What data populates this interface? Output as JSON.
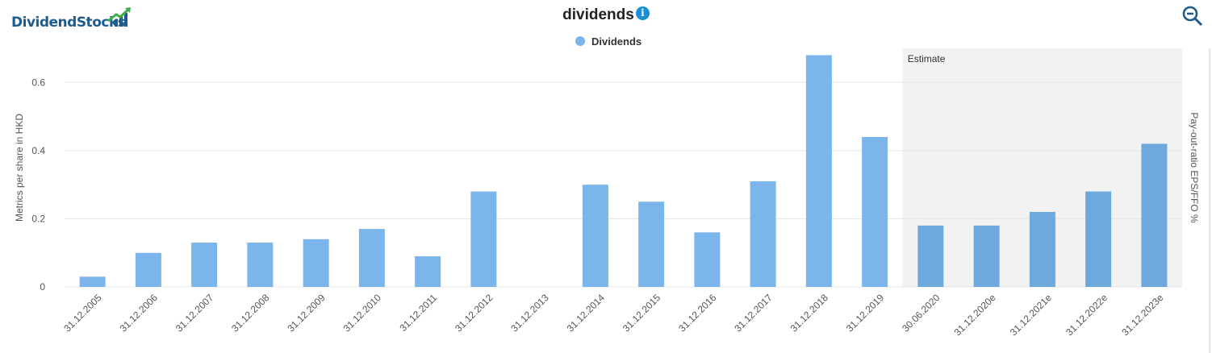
{
  "header": {
    "logo_text": "DividendStocks",
    "title": "dividends",
    "info_icon": "info-icon",
    "zoom_icon": "zoom-out-icon"
  },
  "colors": {
    "bar": "#7cb5ec",
    "bar_estimate": "#6fa8dc",
    "estimate_band": "#f2f2f2",
    "grid": "#e6e6e6",
    "brand": "#1d5c8c",
    "accent_green": "#3fae49"
  },
  "chart_data": {
    "type": "bar",
    "title": "dividends",
    "legend": [
      "Dividends"
    ],
    "legend_position": "top-center",
    "categories": [
      "31.12.2005",
      "31.12.2006",
      "31.12.2007",
      "31.12.2008",
      "31.12.2009",
      "31.12.2010",
      "31.12.2011",
      "31.12.2012",
      "31.12.2013",
      "31.12.2014",
      "31.12.2015",
      "31.12.2016",
      "31.12.2017",
      "31.12.2018",
      "31.12.2019",
      "30.06.2020",
      "31.12.2020e",
      "31.12.2021e",
      "31.12.2022e",
      "31.12.2023e"
    ],
    "series": [
      {
        "name": "Dividends",
        "values": [
          0.03,
          0.1,
          0.13,
          0.13,
          0.14,
          0.17,
          0.09,
          0.28,
          0,
          0.3,
          0.25,
          0.16,
          0.31,
          0.68,
          0.44,
          0.18,
          0.18,
          0.22,
          0.28,
          0.42
        ]
      }
    ],
    "ylabel": "Metrics per share in HKD",
    "ylabel_right": "Pay-out-ratio EPS/FFO %",
    "ylim": [
      0,
      0.7
    ],
    "yticks": [
      0,
      0.2,
      0.4,
      0.6
    ],
    "ytick_labels": [
      "0",
      "0.2",
      "0.4",
      "0.6"
    ],
    "estimate_label": "Estimate",
    "estimate_from_index": 15,
    "grid": true
  }
}
